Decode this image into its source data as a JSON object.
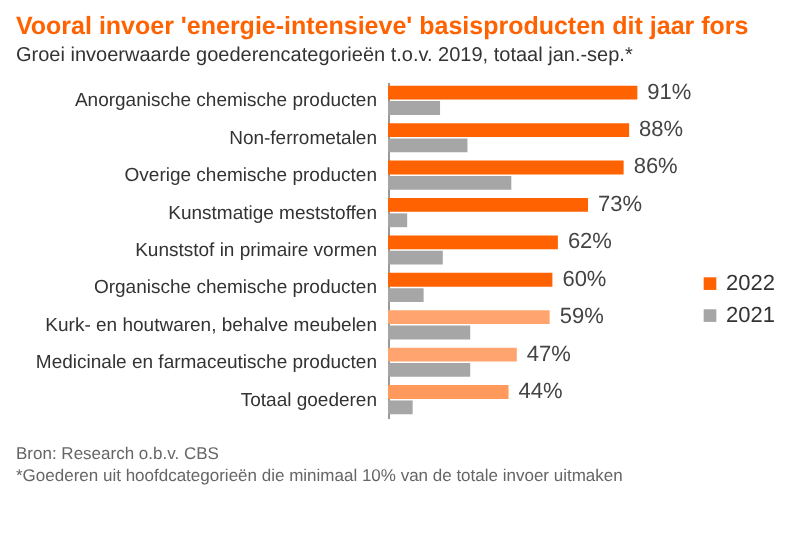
{
  "chart_data": {
    "type": "bar",
    "orientation": "horizontal",
    "title": "Vooral invoer 'energie-intensieve' basisproducten dit jaar fors",
    "subtitle": "Groei invoerwaarde goederencategorieën t.o.v. 2019, totaal jan.-sep.*",
    "categories": [
      "Anorganische chemische producten",
      "Non-ferrometalen",
      "Overige chemische producten",
      "Kunstmatige meststoffen",
      "Kunststof in primaire vormen",
      "Organische chemische producten",
      "Kurk- en houtwaren, behalve meubelen",
      "Medicinale en farmaceutische producten",
      "Totaal goederen"
    ],
    "series": [
      {
        "name": "2022",
        "color": "#ff6200",
        "colors": [
          "#ff6200",
          "#ff6200",
          "#ff6200",
          "#ff6200",
          "#ff6200",
          "#ff6200",
          "#ffa46e",
          "#ffa46e",
          "#ff9a5c"
        ],
        "values": [
          91,
          88,
          86,
          73,
          62,
          60,
          59,
          47,
          44
        ],
        "value_labels": [
          "91%",
          "88%",
          "86%",
          "73%",
          "62%",
          "60%",
          "59%",
          "47%",
          "44%"
        ]
      },
      {
        "name": "2021",
        "color": "#a6a6a6",
        "values": [
          19,
          29,
          45,
          7,
          20,
          13,
          30,
          30,
          9
        ]
      }
    ],
    "legend": "right",
    "annotations": [
      "Bron: Research o.b.v. CBS",
      "*Goederen uit hoofdcategorieën die minimaal 10% van de totale invoer uitmaken"
    ]
  }
}
